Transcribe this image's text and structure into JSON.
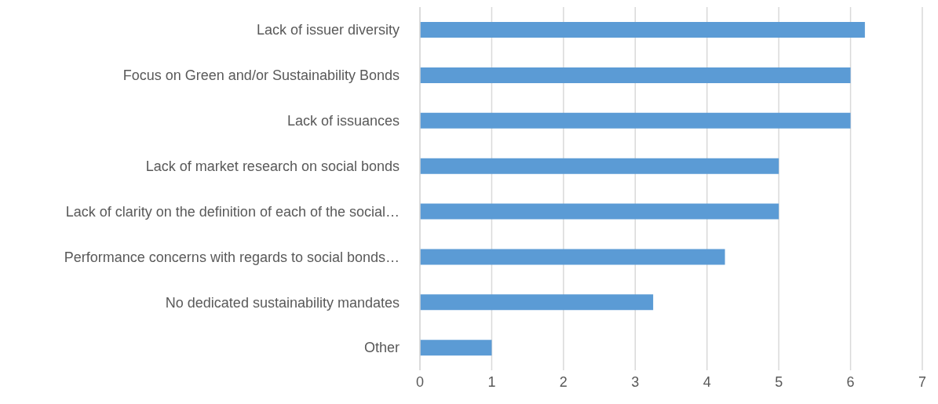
{
  "chart_data": {
    "type": "bar",
    "orientation": "horizontal",
    "categories": [
      "Lack of issuer diversity",
      "Focus on Green and/or Sustainability Bonds",
      "Lack of issuances",
      "Lack of market research on social bonds",
      "Lack of clarity on the definition of each of the social…",
      "Performance concerns with regards to social bonds…",
      "No dedicated sustainability mandates",
      "Other"
    ],
    "values": [
      6.2,
      6,
      6,
      5,
      5,
      4.25,
      3.25,
      1
    ],
    "color": "#5b9bd5",
    "xlim": [
      0,
      7
    ],
    "xticks": [
      0,
      1,
      2,
      3,
      4,
      5,
      6,
      7
    ],
    "grid": "x"
  }
}
